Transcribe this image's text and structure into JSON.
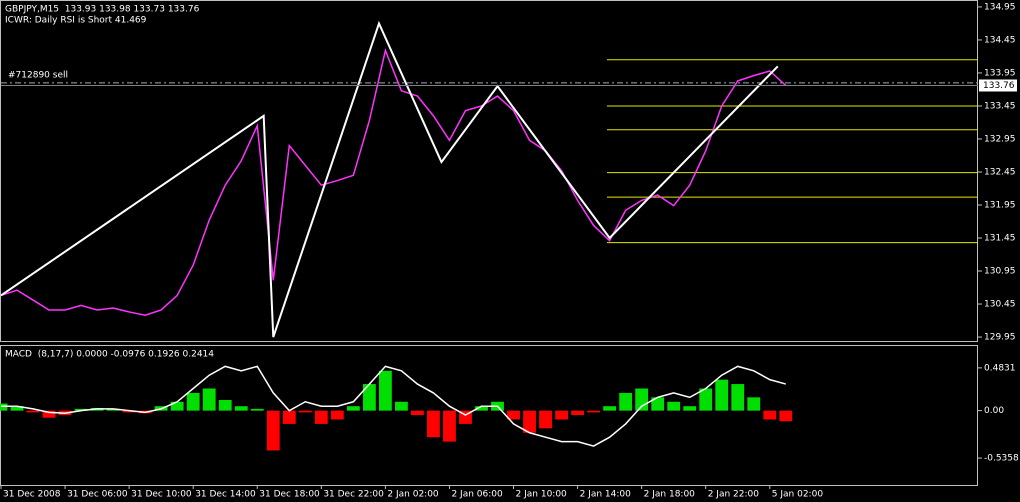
{
  "chart_data": [
    {
      "type": "line",
      "title": "GBPJPY,M15  133.93 133.98 133.73 133.76",
      "subtitle": "ICWR: Daily RSI is Short 41.469",
      "x": [
        0,
        1,
        2,
        3,
        4,
        5,
        6,
        7,
        8,
        9,
        10,
        11,
        12,
        13,
        14,
        15,
        16,
        17,
        18,
        19,
        20,
        21,
        22,
        23,
        24,
        25,
        26,
        27,
        28,
        29,
        30,
        31,
        32,
        33,
        34,
        35,
        36,
        37,
        38,
        39,
        40,
        41,
        42,
        43,
        44,
        45,
        46,
        47,
        48,
        49
      ],
      "xlim": [
        0,
        61
      ],
      "ylim": [
        129.89,
        135.04
      ],
      "yticks": [
        134.95,
        134.45,
        133.95,
        133.45,
        132.95,
        132.45,
        131.95,
        131.45,
        130.95,
        130.45,
        129.95
      ],
      "series": [
        {
          "color": "#ff33ff",
          "values": [
            130.58,
            130.66,
            130.51,
            130.36,
            130.36,
            130.43,
            130.36,
            130.39,
            130.33,
            130.28,
            130.36,
            130.58,
            131.04,
            131.72,
            132.25,
            132.62,
            133.15,
            130.81,
            132.85,
            132.55,
            132.25,
            132.32,
            132.4,
            133.23,
            134.29,
            133.68,
            133.6,
            133.3,
            132.93,
            133.38,
            133.45,
            133.6,
            133.38,
            132.93,
            132.77,
            132.47,
            132.02,
            131.64,
            131.41,
            131.87,
            132.02,
            132.1,
            131.94,
            132.25,
            132.77,
            133.45,
            133.83,
            133.91,
            133.98,
            133.76
          ]
        },
        {
          "color": "#ffffff",
          "x": [
            0,
            16.4,
            17,
            23.6,
            27.5,
            31,
            38,
            48.5
          ],
          "values": [
            130.58,
            133.3,
            129.95,
            134.7,
            132.6,
            133.75,
            131.45,
            134.05
          ]
        }
      ],
      "levels": {
        "color": "#e6e600",
        "values": [
          134.15,
          133.45,
          133.09,
          132.44,
          132.07,
          131.38
        ]
      },
      "trade_line": {
        "label": "#712890 sell",
        "value": 133.8
      },
      "last_price": 133.76
    },
    {
      "type": "bar",
      "title": "MACD  (8,17,7) 0.0000 -0.0976 0.1926 0.2414",
      "x": [
        0,
        1,
        2,
        3,
        4,
        5,
        6,
        7,
        8,
        9,
        10,
        11,
        12,
        13,
        14,
        15,
        16,
        17,
        18,
        19,
        20,
        21,
        22,
        23,
        24,
        25,
        26,
        27,
        28,
        29,
        30,
        31,
        32,
        33,
        34,
        35,
        36,
        37,
        38,
        39,
        40,
        41,
        42,
        43,
        44,
        45,
        46,
        47,
        48,
        49
      ],
      "xlim": [
        0,
        61
      ],
      "ylim": [
        -0.84,
        0.73
      ],
      "yticks": [
        0.4831,
        {
          "value": 0,
          "label": "0.00"
        },
        -0.5358
      ],
      "xticks": [
        {
          "value": 0,
          "label": "31 Dec 2008"
        },
        {
          "value": 4,
          "label": "31 Dec 06:00"
        },
        {
          "value": 8,
          "label": "31 Dec 10:00"
        },
        {
          "value": 12,
          "label": "31 Dec 14:00"
        },
        {
          "value": 16,
          "label": "31 Dec 18:00"
        },
        {
          "value": 20,
          "label": "31 Dec 22:00"
        },
        {
          "value": 24,
          "label": "2 Jan 02:00"
        },
        {
          "value": 28,
          "label": "2 Jan 06:00"
        },
        {
          "value": 32,
          "label": "2 Jan 10:00"
        },
        {
          "value": 36,
          "label": "2 Jan 14:00"
        },
        {
          "value": 40,
          "label": "2 Jan 18:00"
        },
        {
          "value": 44,
          "label": "2 Jan 22:00"
        },
        {
          "value": 48,
          "label": "5 Jan 02:00"
        }
      ],
      "colors": {
        "positive": "#00e000",
        "negative": "#ff0000"
      },
      "values": [
        0.08,
        0.05,
        -0.02,
        -0.08,
        -0.05,
        0.02,
        0.03,
        0.02,
        -0.02,
        -0.03,
        0.05,
        0.1,
        0.2,
        0.25,
        0.12,
        0.05,
        0.02,
        -0.45,
        -0.15,
        -0.02,
        -0.15,
        -0.1,
        0.05,
        0.3,
        0.45,
        0.1,
        -0.05,
        -0.3,
        -0.35,
        -0.15,
        0.05,
        0.1,
        -0.1,
        -0.25,
        -0.2,
        -0.1,
        -0.05,
        -0.02,
        0.05,
        0.2,
        0.25,
        0.15,
        0.1,
        0.05,
        0.25,
        0.35,
        0.3,
        0.15,
        -0.1,
        -0.12
      ],
      "series": [
        {
          "color": "#ffffff",
          "values": [
            0.05,
            0.05,
            0.02,
            -0.02,
            -0.03,
            0,
            0.02,
            0.02,
            0,
            -0.02,
            0.02,
            0.1,
            0.25,
            0.4,
            0.5,
            0.45,
            0.5,
            0.2,
            0,
            0.1,
            0.05,
            0.05,
            0.1,
            0.3,
            0.5,
            0.45,
            0.3,
            0.2,
            0.05,
            -0.05,
            0.05,
            0.05,
            -0.15,
            -0.25,
            -0.3,
            -0.35,
            -0.35,
            -0.4,
            -0.3,
            -0.15,
            0.05,
            0.15,
            0.2,
            0.15,
            0.25,
            0.4,
            0.5,
            0.45,
            0.35,
            0.3
          ]
        }
      ]
    }
  ]
}
